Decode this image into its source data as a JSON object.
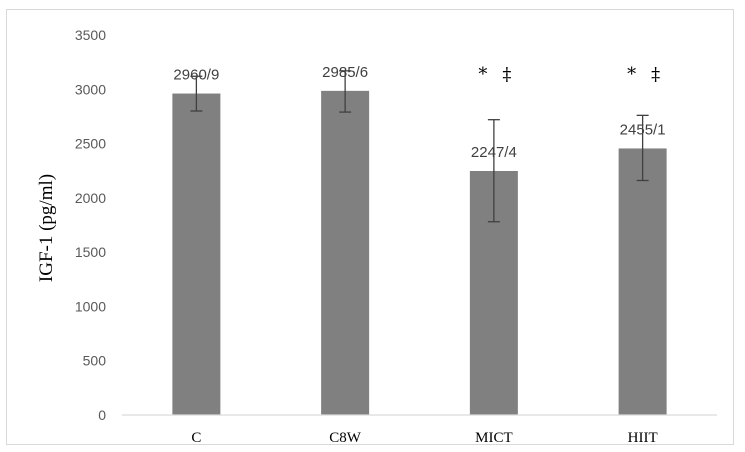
{
  "chart_data": {
    "type": "bar",
    "title": "",
    "xlabel": "",
    "ylabel": "IGF-1 (pg/ml)",
    "ylim": [
      0,
      3500
    ],
    "yticks": [
      0,
      500,
      1000,
      1500,
      2000,
      2500,
      3000,
      3500
    ],
    "categories": [
      "C",
      "C8W",
      "MICT",
      "HIIT"
    ],
    "values": [
      2960.9,
      2985.6,
      2247.4,
      2455.1
    ],
    "data_labels": [
      "2960/9",
      "2985/6",
      "2247/4",
      "2455/1"
    ],
    "error_bars": [
      {
        "low": 2800,
        "high": 3120
      },
      {
        "low": 2790,
        "high": 3170
      },
      {
        "low": 1780,
        "high": 2720
      },
      {
        "low": 2160,
        "high": 2760
      }
    ],
    "significance": [
      [],
      [],
      [
        "*",
        "‡"
      ],
      [
        "*",
        "‡"
      ]
    ],
    "grid": false,
    "legend": "none",
    "colors": {
      "bar": "#808080",
      "axis": "#d9d9d9",
      "error_bar": "#404040",
      "frame": "#d9d9d9"
    }
  }
}
